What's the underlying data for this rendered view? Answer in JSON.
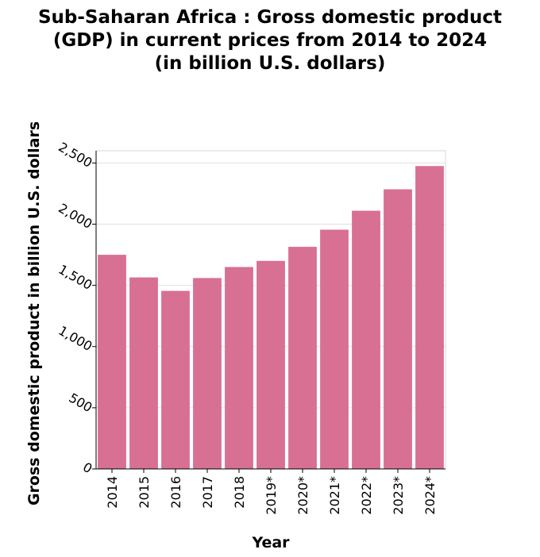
{
  "chart_data": {
    "type": "bar",
    "title_lines": [
      "Sub-Saharan Africa : Gross domestic product",
      "(GDP) in current prices from 2014 to 2024",
      "(in billion U.S. dollars)"
    ],
    "xlabel": "Year",
    "ylabel": "Gross domestic product in billion U.S. dollars",
    "categories": [
      "2014",
      "2015",
      "2016",
      "2017",
      "2018",
      "2019*",
      "2020*",
      "2021*",
      "2022*",
      "2023*",
      "2024*"
    ],
    "values": [
      1750,
      1565,
      1455,
      1560,
      1650,
      1700,
      1815,
      1955,
      2110,
      2285,
      2475
    ],
    "ylim": [
      0,
      2600
    ],
    "yticks": [
      0,
      500,
      1000,
      1500,
      2000,
      2500
    ],
    "ytick_labels": [
      "0",
      "500",
      "1,000",
      "1,500",
      "2,000",
      "2,500"
    ],
    "grid": true,
    "bar_color": "#d87094"
  }
}
